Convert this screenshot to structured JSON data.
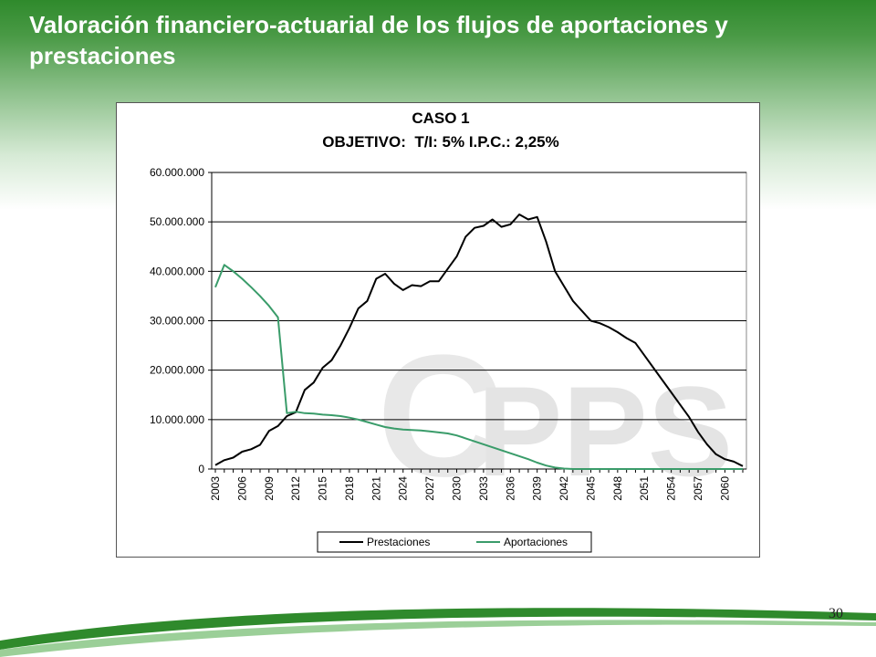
{
  "slide": {
    "title": "Valoración financiero-actuarial de los flujos de aportaciones y prestaciones",
    "page_number": "30",
    "header_color": "#2f8a2c"
  },
  "chart_data": {
    "type": "line",
    "title": "CASO 1",
    "subtitle": "OBJETIVO:  T/I: 5% I.P.C.: 2,25%",
    "ylim": [
      0,
      60000000
    ],
    "y_ticks": [
      "0",
      "10.000.000",
      "20.000.000",
      "30.000.000",
      "40.000.000",
      "50.000.000",
      "60.000.000"
    ],
    "y_tick_values": [
      0,
      10000000,
      20000000,
      30000000,
      40000000,
      50000000,
      60000000
    ],
    "x_tick_labels": [
      "2003",
      "2006",
      "2009",
      "2012",
      "2015",
      "2018",
      "2021",
      "2024",
      "2027",
      "2030",
      "2033",
      "2036",
      "2039",
      "2042",
      "2045",
      "2048",
      "2051",
      "2054",
      "2057",
      "2060"
    ],
    "x": [
      2003,
      2004,
      2005,
      2006,
      2007,
      2008,
      2009,
      2010,
      2011,
      2012,
      2013,
      2014,
      2015,
      2016,
      2017,
      2018,
      2019,
      2020,
      2021,
      2022,
      2023,
      2024,
      2025,
      2026,
      2027,
      2028,
      2029,
      2030,
      2031,
      2032,
      2033,
      2034,
      2035,
      2036,
      2037,
      2038,
      2039,
      2040,
      2041,
      2042,
      2043,
      2044,
      2045,
      2046,
      2047,
      2048,
      2049,
      2050,
      2051,
      2052,
      2053,
      2054,
      2055,
      2056,
      2057,
      2058,
      2059,
      2060,
      2061,
      2062
    ],
    "grid": true,
    "legend": "bottom",
    "series": [
      {
        "name": "Prestaciones",
        "color": "#000000",
        "values": [
          800000,
          1800000,
          2300000,
          3500000,
          4000000,
          4900000,
          7700000,
          8700000,
          10700000,
          11500000,
          16000000,
          17500000,
          20500000,
          22000000,
          25000000,
          28500000,
          32500000,
          34000000,
          38500000,
          39500000,
          37500000,
          36200000,
          37200000,
          37000000,
          38000000,
          38000000,
          40500000,
          43000000,
          47000000,
          48800000,
          49200000,
          50500000,
          49000000,
          49500000,
          51500000,
          50500000,
          51000000,
          46000000,
          40000000,
          37000000,
          34000000,
          32000000,
          30000000,
          29500000,
          28700000,
          27700000,
          26500000,
          25500000,
          23000000,
          20500000,
          18000000,
          15500000,
          13000000,
          10500000,
          7500000,
          5000000,
          3000000,
          2000000,
          1500000,
          600000
        ]
      },
      {
        "name": "Aportaciones",
        "color": "#3a9c6a",
        "values": [
          36800000,
          41300000,
          40000000,
          38500000,
          36800000,
          35000000,
          33000000,
          30700000,
          11300000,
          11600000,
          11300000,
          11200000,
          11000000,
          10900000,
          10700000,
          10400000,
          10000000,
          9500000,
          9000000,
          8500000,
          8200000,
          8000000,
          7900000,
          7800000,
          7600000,
          7400000,
          7200000,
          6800000,
          6200000,
          5600000,
          5000000,
          4400000,
          3800000,
          3200000,
          2600000,
          2000000,
          1300000,
          700000,
          300000,
          100000,
          0,
          0,
          0,
          0,
          0,
          0,
          0,
          0,
          0,
          0,
          0,
          0,
          0,
          0,
          0,
          0,
          0,
          0,
          0,
          0
        ]
      }
    ]
  }
}
